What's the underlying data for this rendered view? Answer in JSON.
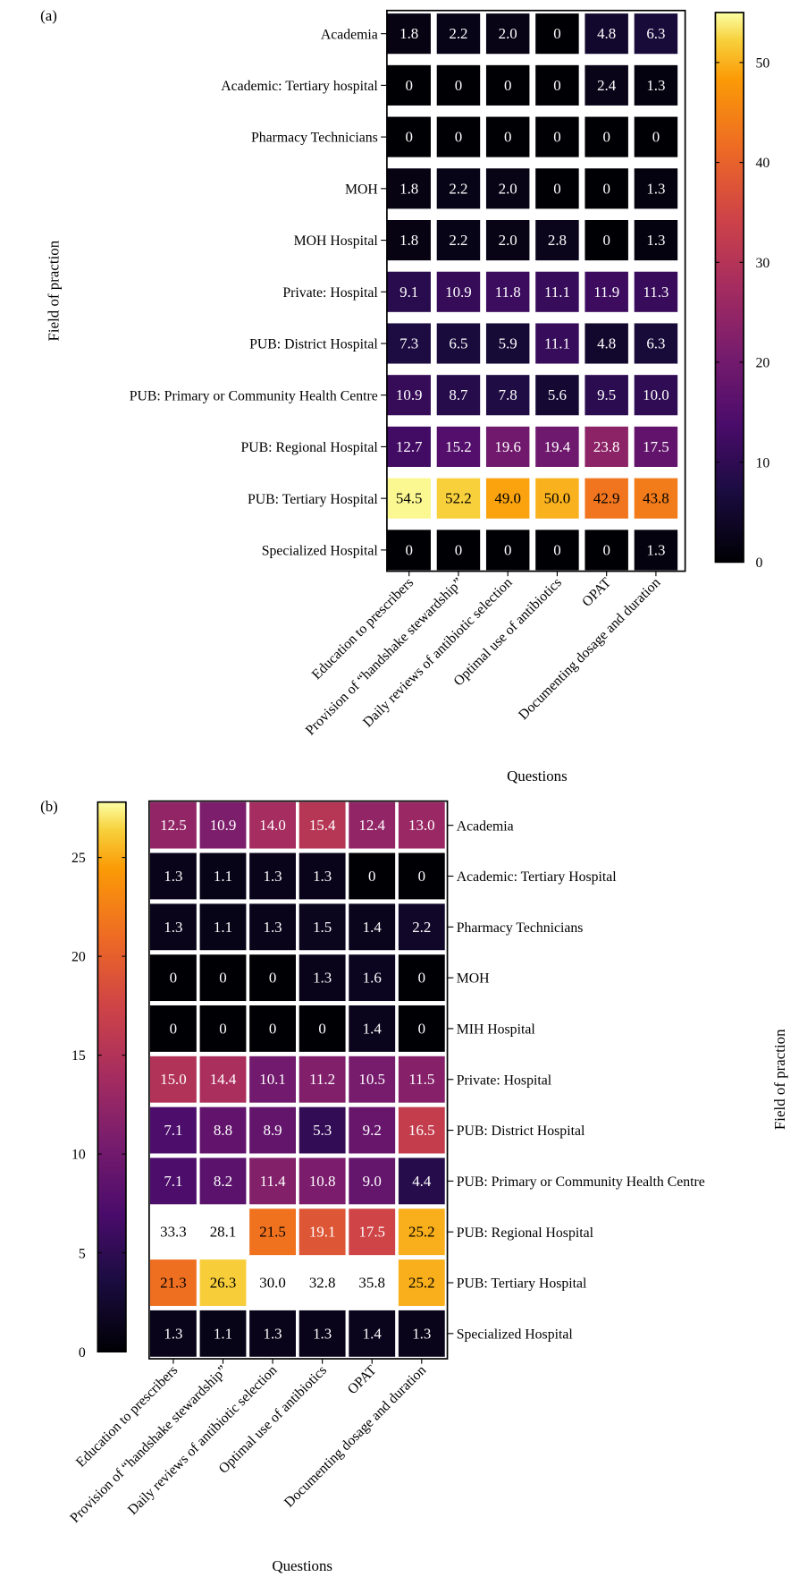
{
  "chart_data": [
    {
      "type": "heatmap",
      "panel_label": "(a)",
      "xlabel": "Questions",
      "ylabel": "Field of praction",
      "colormap": "inferno",
      "colorbar": {
        "range": [
          0,
          55
        ],
        "ticks": [
          0,
          10,
          20,
          30,
          40,
          50
        ],
        "position": "right"
      },
      "x_categories": [
        "Education to prescribers",
        "Provision of “handshake stewardship”",
        "Daily reviews of antibiotic selection",
        "Optimal use of antibiotics",
        "OPAT",
        "Documenting dosage and duration"
      ],
      "y_categories": [
        "Academia",
        "Academic: Tertiary hospital",
        "Pharmacy Technicians",
        "MOH",
        "MOH Hospital",
        "Private: Hospital",
        "PUB: District Hospital",
        "PUB: Primary or Community Health Centre",
        "PUB: Regional Hospital",
        "PUB: Tertiary Hospital",
        "Specialized Hospital"
      ],
      "values": [
        [
          "1.8",
          "2.2",
          "2.0",
          "0",
          "4.8",
          "6.3"
        ],
        [
          "0",
          "0",
          "0",
          "0",
          "2.4",
          "1.3"
        ],
        [
          "0",
          "0",
          "0",
          "0",
          "0",
          "0"
        ],
        [
          "1.8",
          "2.2",
          "2.0",
          "0",
          "0",
          "1.3"
        ],
        [
          "1.8",
          "2.2",
          "2.0",
          "2.8",
          "0",
          "1.3"
        ],
        [
          "9.1",
          "10.9",
          "11.8",
          "11.1",
          "11.9",
          "11.3"
        ],
        [
          "7.3",
          "6.5",
          "5.9",
          "11.1",
          "4.8",
          "6.3"
        ],
        [
          "10.9",
          "8.7",
          "7.8",
          "5.6",
          "9.5",
          "10.0"
        ],
        [
          "12.7",
          "15.2",
          "19.6",
          "19.4",
          "23.8",
          "17.5"
        ],
        [
          "54.5",
          "52.2",
          "49.0",
          "50.0",
          "42.9",
          "43.8"
        ],
        [
          "0",
          "0",
          "0",
          "0",
          "0",
          "1.3"
        ]
      ]
    },
    {
      "type": "heatmap",
      "panel_label": "(b)",
      "xlabel": "Questions",
      "ylabel": "Field of praction",
      "colormap": "inferno",
      "colorbar": {
        "range": [
          0,
          27.8
        ],
        "ticks": [
          0,
          5,
          10,
          15,
          20,
          25
        ],
        "position": "left"
      },
      "x_categories": [
        "Education to prescribers",
        "Provision of “handshake stewardship”",
        "Daily reviews of antibiotic selection",
        "Optimal use of antibiotics",
        "OPAT",
        "Documenting dosage and duration"
      ],
      "y_categories": [
        "Academia",
        "Academic: Tertiary Hospital",
        "Pharmacy Technicians",
        "MOH",
        "MIH Hospital",
        "Private: Hospital",
        "PUB: District Hospital",
        "PUB: Primary or Community Health Centre",
        "PUB: Regional Hospital",
        "PUB: Tertiary Hospital",
        "Specialized Hospital"
      ],
      "values": [
        [
          "12.5",
          "10.9",
          "14.0",
          "15.4",
          "12.4",
          "13.0"
        ],
        [
          "1.3",
          "1.1",
          "1.3",
          "1.3",
          "0",
          "0"
        ],
        [
          "1.3",
          "1.1",
          "1.3",
          "1.5",
          "1.4",
          "2.2"
        ],
        [
          "0",
          "0",
          "0",
          "1.3",
          "1.6",
          "0"
        ],
        [
          "0",
          "0",
          "0",
          "0",
          "1.4",
          "0"
        ],
        [
          "15.0",
          "14.4",
          "10.1",
          "11.2",
          "10.5",
          "11.5"
        ],
        [
          "7.1",
          "8.8",
          "8.9",
          "5.3",
          "9.2",
          "16.5"
        ],
        [
          "7.1",
          "8.2",
          "11.4",
          "10.8",
          "9.0",
          "4.4"
        ],
        [
          "33.3",
          "28.1",
          "21.5",
          "19.1",
          "17.5",
          "25.2"
        ],
        [
          "21.3",
          "26.3",
          "30.0",
          "32.8",
          "35.8",
          "25.2"
        ],
        [
          "1.3",
          "1.1",
          "1.3",
          "1.3",
          "1.4",
          "1.3"
        ]
      ]
    }
  ]
}
